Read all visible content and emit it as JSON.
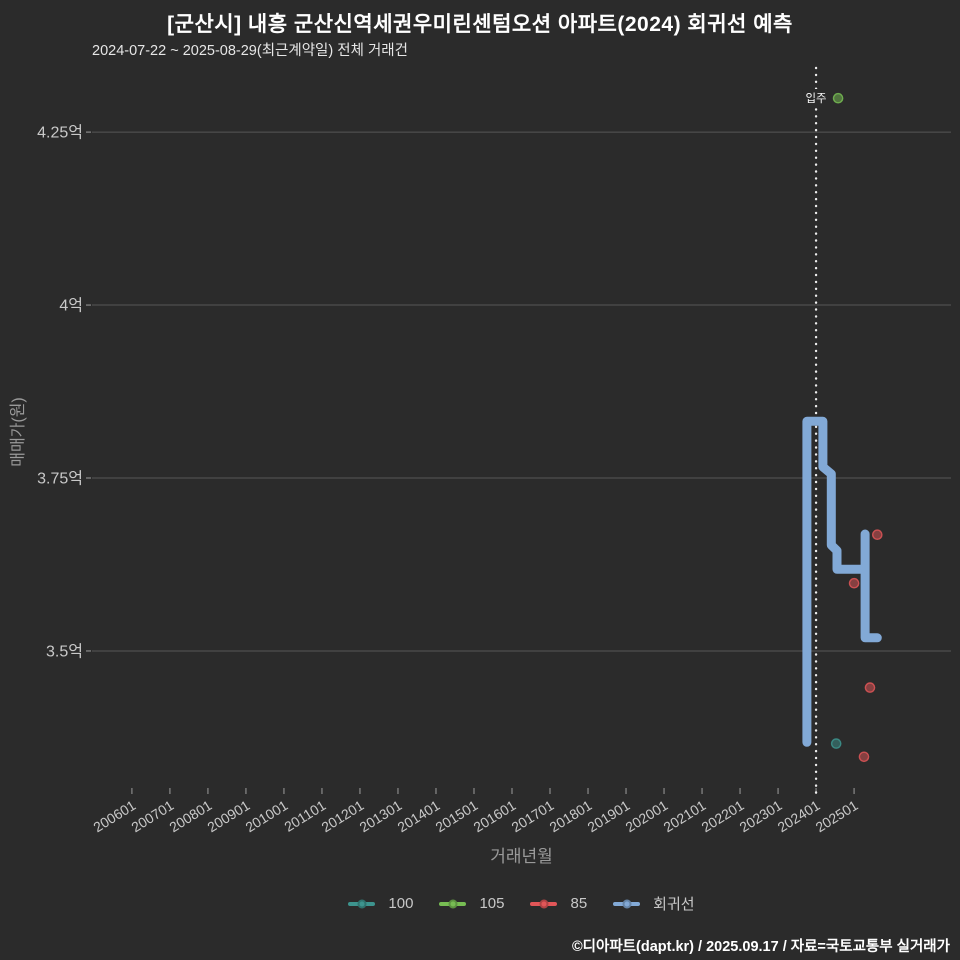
{
  "header": {
    "title": "[군산시] 내흥 군산신역세권우미린센텀오션 아파트(2024) 회귀선 예측",
    "subtitle": "2024-07-22 ~ 2025-08-29(최근계약일) 전체 거래건"
  },
  "footer": {
    "text": "©디아파트(dapt.kr) / 2025.09.17 / 자료=국토교통부 실거래가"
  },
  "colors": {
    "background": "#2b2b2b",
    "grid": "#575757",
    "tick_label": "#c9c9c9",
    "axis_title": "#9a9a9a",
    "annotation": "#ededed",
    "series_100": "#3d948e",
    "series_105": "#77bd53",
    "series_85": "#e15658",
    "regression": "#82a9d6"
  },
  "chart_data": {
    "type": "scatter",
    "title": "[군산시] 내흥 군산신역세권우미린센텀오션 아파트(2024) 회귀선 예측",
    "subtitle": "2024-07-22 ~ 2025-08-29(최근계약일) 전체 거래건",
    "xlabel": "거래년월",
    "ylabel": "매매가(원)",
    "x_unit": "decimal_year",
    "y_unit": "억원",
    "xlim": [
      2004.95,
      2027.55
    ],
    "ylim": [
      3.299,
      4.347
    ],
    "grid": true,
    "legend_position": "bottom",
    "x_ticks": [
      {
        "x": 2006,
        "label": "200601"
      },
      {
        "x": 2007,
        "label": "200701"
      },
      {
        "x": 2008,
        "label": "200801"
      },
      {
        "x": 2009,
        "label": "200901"
      },
      {
        "x": 2010,
        "label": "201001"
      },
      {
        "x": 2011,
        "label": "201101"
      },
      {
        "x": 2012,
        "label": "201201"
      },
      {
        "x": 2013,
        "label": "201301"
      },
      {
        "x": 2014,
        "label": "201401"
      },
      {
        "x": 2015,
        "label": "201501"
      },
      {
        "x": 2016,
        "label": "201601"
      },
      {
        "x": 2017,
        "label": "201701"
      },
      {
        "x": 2018,
        "label": "201801"
      },
      {
        "x": 2019,
        "label": "201901"
      },
      {
        "x": 2020,
        "label": "202001"
      },
      {
        "x": 2021,
        "label": "202101"
      },
      {
        "x": 2022,
        "label": "202201"
      },
      {
        "x": 2023,
        "label": "202301"
      },
      {
        "x": 2024,
        "label": "202401"
      },
      {
        "x": 2025,
        "label": "202501"
      }
    ],
    "y_ticks": [
      {
        "value": 4.25,
        "label": "4.25억"
      },
      {
        "value": 4.0,
        "label": "4억"
      },
      {
        "value": 3.75,
        "label": "3.75억"
      },
      {
        "value": 3.5,
        "label": "3.5억"
      }
    ],
    "annotation_line": {
      "x": 2024.0,
      "label": "입주",
      "label_y_value": 4.349,
      "style": "dotted-vertical"
    },
    "series": [
      {
        "name": "100",
        "type": "scatter",
        "color": "#3d948e",
        "points": [
          [
            2024.53,
            3.366
          ]
        ]
      },
      {
        "name": "105",
        "type": "scatter",
        "color": "#77bd53",
        "points": [
          [
            2024.58,
            4.299
          ]
        ]
      },
      {
        "name": "85",
        "type": "scatter",
        "color": "#e15658",
        "points": [
          [
            2025.0,
            3.598
          ],
          [
            2025.26,
            3.347
          ],
          [
            2025.42,
            3.447
          ],
          [
            2025.61,
            3.668
          ]
        ]
      },
      {
        "name": "회귀선",
        "type": "line",
        "color": "#82a9d6",
        "line_width": 9,
        "points": [
          [
            2023.76,
            3.368
          ],
          [
            2023.76,
            3.832
          ],
          [
            2024.18,
            3.832
          ],
          [
            2024.18,
            3.766
          ],
          [
            2024.4,
            3.756
          ],
          [
            2024.4,
            3.653
          ],
          [
            2024.55,
            3.645
          ],
          [
            2024.55,
            3.618
          ],
          [
            2025.29,
            3.618
          ],
          [
            2025.29,
            3.669
          ],
          [
            2025.29,
            3.519
          ],
          [
            2025.61,
            3.519
          ]
        ]
      }
    ]
  }
}
